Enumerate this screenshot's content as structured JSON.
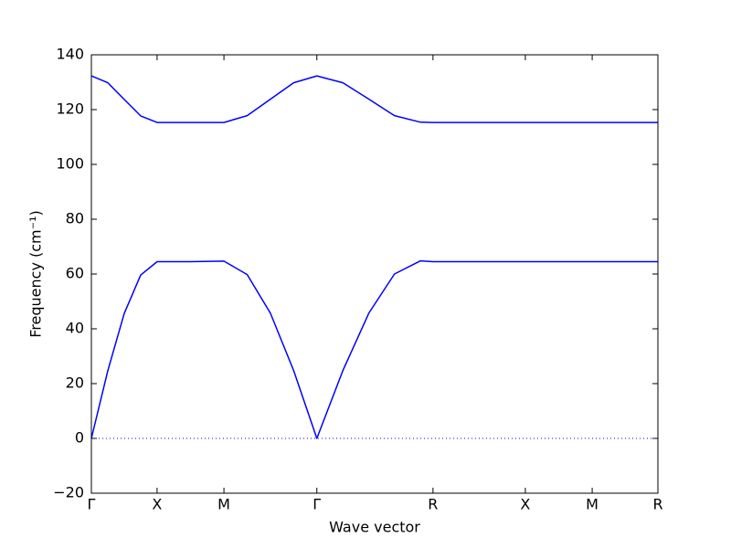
{
  "chart_data": {
    "type": "line",
    "xlabel": "Wave vector",
    "ylabel": "Frequency (cm⁻¹)",
    "x": [
      0,
      0.029,
      0.058,
      0.087,
      0.116,
      0.175,
      0.234,
      0.275,
      0.316,
      0.357,
      0.398,
      0.444,
      0.49,
      0.535,
      0.581,
      0.603,
      0.766,
      0.884,
      1.0
    ],
    "series": [
      {
        "color": "#0000ff",
        "values": [
          0,
          24.7,
          45.6,
          59.6,
          64.5,
          64.5,
          64.7,
          59.8,
          45.7,
          24.8,
          0,
          24.8,
          45.8,
          60,
          64.8,
          64.5,
          64.5,
          64.5,
          64.5
        ]
      },
      {
        "color": "#0000ff",
        "values": [
          132.3,
          129.8,
          123.7,
          117.7,
          115.3,
          115.3,
          115.3,
          117.8,
          123.8,
          129.8,
          132.3,
          129.8,
          123.8,
          117.8,
          115.4,
          115.3,
          115.3,
          115.3,
          115.3
        ]
      }
    ],
    "xlim": [
      0,
      1
    ],
    "xticks": [
      {
        "value": 0,
        "label": "Γ"
      },
      {
        "value": 0.116,
        "label": "X"
      },
      {
        "value": 0.234,
        "label": "M"
      },
      {
        "value": 0.398,
        "label": "Γ"
      },
      {
        "value": 0.603,
        "label": "R"
      },
      {
        "value": 0.766,
        "label": "X"
      },
      {
        "value": 0.884,
        "label": "M"
      },
      {
        "value": 1.0,
        "label": "R"
      }
    ],
    "ylim": [
      -20,
      140
    ],
    "yticks": [
      {
        "value": -20,
        "label": "−20"
      },
      0,
      20,
      40,
      60,
      80,
      100,
      120,
      140
    ],
    "zero_line": true,
    "zero_line_color": "#0000ff"
  }
}
